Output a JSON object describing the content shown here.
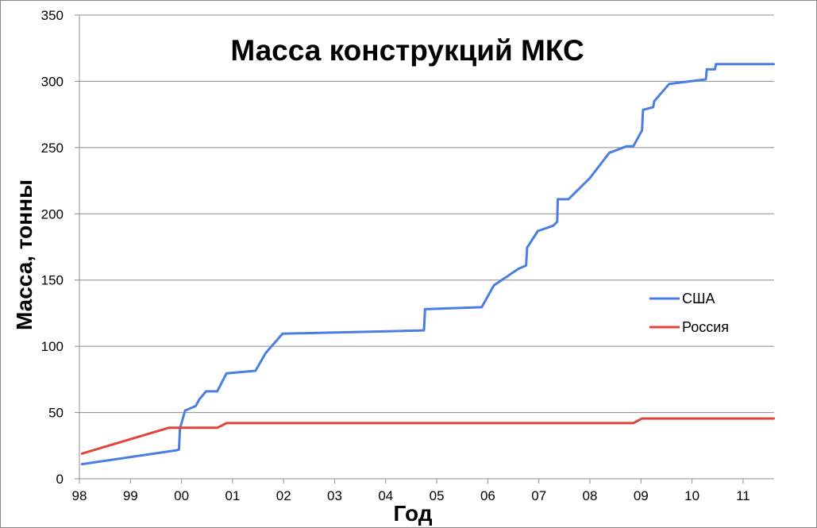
{
  "chart_data": {
    "type": "line",
    "title": "Масса конструкций МКС",
    "xlabel": "Год",
    "ylabel": "Масса, тонны",
    "x_tick_labels": [
      "98",
      "99",
      "00",
      "01",
      "02",
      "03",
      "04",
      "05",
      "06",
      "07",
      "08",
      "09",
      "10",
      "11"
    ],
    "y_tick_labels": [
      "0",
      "50",
      "100",
      "150",
      "200",
      "250",
      "300",
      "350"
    ],
    "xlim": [
      1998,
      2011.6
    ],
    "ylim": [
      0,
      350
    ],
    "grid": "horizontal",
    "legend_position": "right",
    "series": [
      {
        "name": "США",
        "color": "#4a7ee0",
        "points": [
          [
            1998.05,
            11
          ],
          [
            1999.9,
            21.5
          ],
          [
            1999.95,
            22
          ],
          [
            1999.97,
            38
          ],
          [
            2000.07,
            51.5
          ],
          [
            2000.28,
            55
          ],
          [
            2000.35,
            60
          ],
          [
            2000.48,
            66
          ],
          [
            2000.7,
            66
          ],
          [
            2000.88,
            79.5
          ],
          [
            2001.45,
            81.5
          ],
          [
            2001.65,
            95
          ],
          [
            2001.98,
            109.5
          ],
          [
            2004.75,
            112
          ],
          [
            2004.77,
            128
          ],
          [
            2005.88,
            129.5
          ],
          [
            2006.12,
            146
          ],
          [
            2006.6,
            158.5
          ],
          [
            2006.75,
            161
          ],
          [
            2006.77,
            174.5
          ],
          [
            2006.98,
            187
          ],
          [
            2007.28,
            191
          ],
          [
            2007.36,
            194
          ],
          [
            2007.37,
            211
          ],
          [
            2007.58,
            211
          ],
          [
            2008.0,
            227
          ],
          [
            2008.38,
            246
          ],
          [
            2008.72,
            251
          ],
          [
            2008.85,
            251
          ],
          [
            2009.02,
            263
          ],
          [
            2009.04,
            278.5
          ],
          [
            2009.24,
            280.5
          ],
          [
            2009.26,
            285
          ],
          [
            2009.55,
            298
          ],
          [
            2010.27,
            301.5
          ],
          [
            2010.29,
            309
          ],
          [
            2010.45,
            309
          ],
          [
            2010.47,
            313
          ],
          [
            2011.6,
            313
          ]
        ]
      },
      {
        "name": "Россия",
        "color": "#e0443a",
        "points": [
          [
            1998.05,
            19
          ],
          [
            1999.75,
            38.5
          ],
          [
            2000.7,
            38.5
          ],
          [
            2000.88,
            42
          ],
          [
            2008.85,
            42
          ],
          [
            2009.02,
            45.5
          ],
          [
            2011.6,
            45.5
          ]
        ]
      }
    ]
  }
}
